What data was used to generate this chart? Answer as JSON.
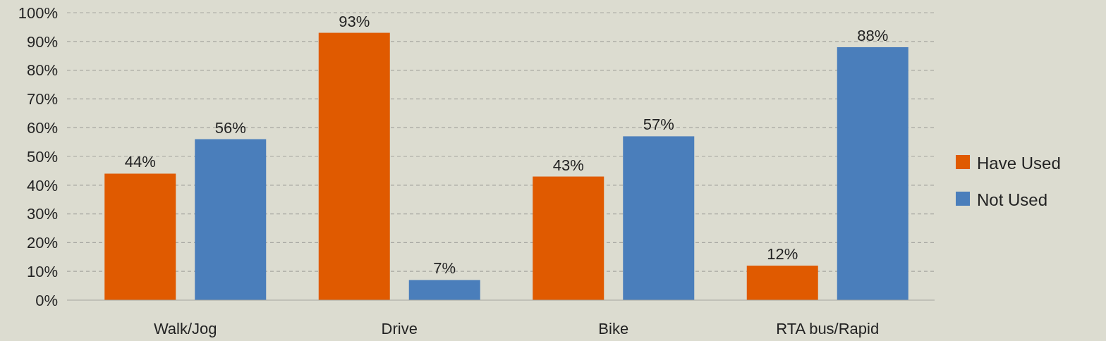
{
  "chart_data": {
    "type": "bar",
    "categories": [
      "Walk/Jog",
      "Drive",
      "Bike",
      "RTA bus/Rapid"
    ],
    "series": [
      {
        "name": "Have Used",
        "color": "#e05a00",
        "values": [
          44,
          93,
          43,
          12
        ],
        "value_labels": [
          "44%",
          "93%",
          "43%",
          "12%"
        ]
      },
      {
        "name": "Not Used",
        "color": "#4a7ebb",
        "values": [
          56,
          7,
          57,
          88
        ],
        "value_labels": [
          "56%",
          "7%",
          "57%",
          "88%"
        ]
      }
    ],
    "ylim": [
      0,
      100
    ],
    "yticks": [
      {
        "value": 0,
        "label": "0%"
      },
      {
        "value": 10,
        "label": "10%"
      },
      {
        "value": 20,
        "label": "20%"
      },
      {
        "value": 30,
        "label": "30%"
      },
      {
        "value": 40,
        "label": "40%"
      },
      {
        "value": 50,
        "label": "50%"
      },
      {
        "value": 60,
        "label": "60%"
      },
      {
        "value": 70,
        "label": "70%"
      },
      {
        "value": 80,
        "label": "80%"
      },
      {
        "value": 90,
        "label": "90%"
      },
      {
        "value": 100,
        "label": "100%"
      }
    ],
    "grid": "y",
    "legend": "right"
  }
}
